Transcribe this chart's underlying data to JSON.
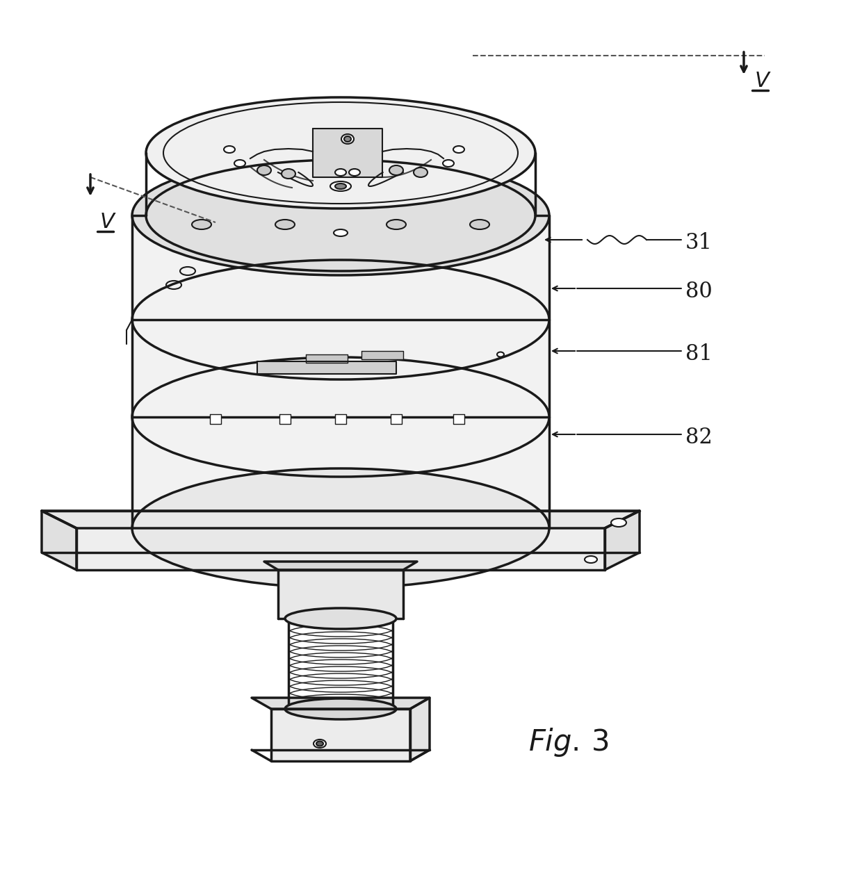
{
  "background_color": "#ffffff",
  "line_color": "#1a1a1a",
  "fig_width": 12.4,
  "fig_height": 12.59,
  "dpi": 100
}
